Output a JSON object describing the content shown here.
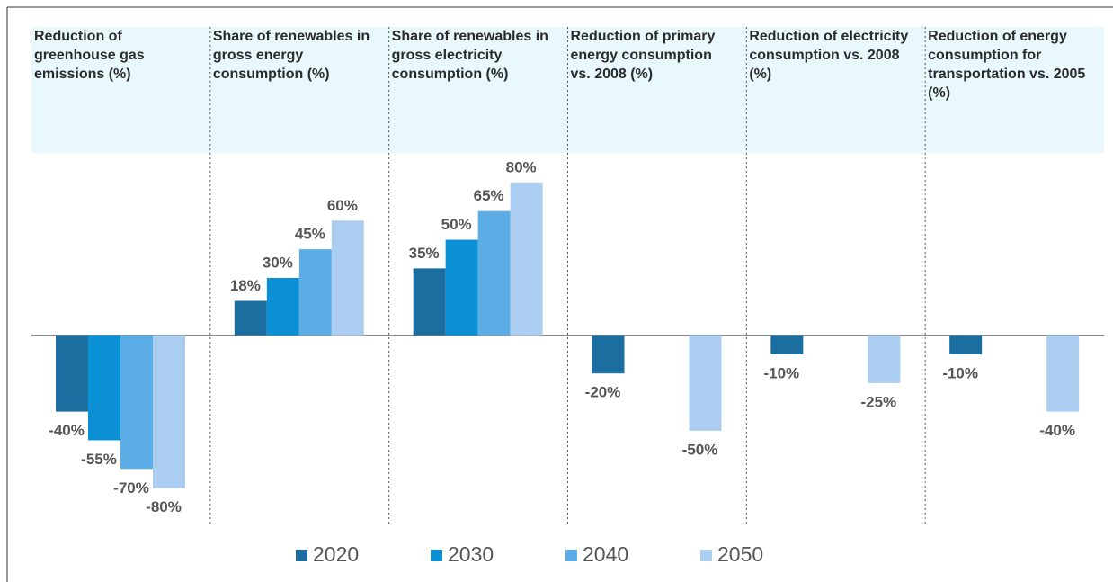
{
  "chart_data": {
    "type": "bar",
    "categories": [
      "Reduction of greenhouse gas emissions (%)",
      "Share of renewables in gross energy consumption (%)",
      "Share of renewables in gross electricity consumption (%)",
      "Reduction of primary energy consumption vs. 2008 (%)",
      "Reduction of electricity consumption vs. 2008 (%)",
      "Reduction of energy consumption for transportation vs. 2005 (%)"
    ],
    "series": [
      {
        "name": "2020",
        "color": "#1b6e9f",
        "values": [
          -40,
          18,
          35,
          -20,
          -10,
          -10
        ],
        "value_labels": [
          "-40%",
          "18%",
          "35%",
          "-20%",
          "-10%",
          "-10%"
        ]
      },
      {
        "name": "2030",
        "color": "#0b8fd5",
        "values": [
          -55,
          30,
          50,
          null,
          null,
          null
        ],
        "value_labels": [
          "-55%",
          "30%",
          "50%",
          null,
          null,
          null
        ]
      },
      {
        "name": "2040",
        "color": "#5cace6",
        "values": [
          -70,
          45,
          65,
          null,
          null,
          null
        ],
        "value_labels": [
          "-70%",
          "45%",
          "65%",
          null,
          null,
          null
        ]
      },
      {
        "name": "2050",
        "color": "#aacdf0",
        "values": [
          -80,
          60,
          80,
          -50,
          -25,
          -40
        ],
        "value_labels": [
          "-80%",
          "60%",
          "80%",
          "-50%",
          "-25%",
          "-40%"
        ]
      }
    ],
    "ylim": [
      -100,
      95
    ]
  }
}
